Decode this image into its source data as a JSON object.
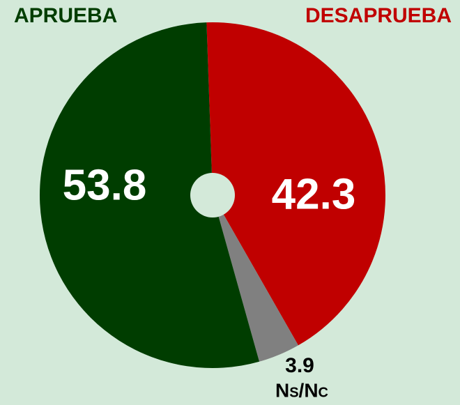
{
  "chart_data": {
    "type": "pie",
    "categories": [
      "DESAPRUEBA",
      "Ns/Nc",
      "APRUEBA"
    ],
    "values": [
      42.3,
      3.9,
      53.8
    ],
    "colors": [
      "#c00000",
      "#808080",
      "#003d00"
    ]
  }
}
